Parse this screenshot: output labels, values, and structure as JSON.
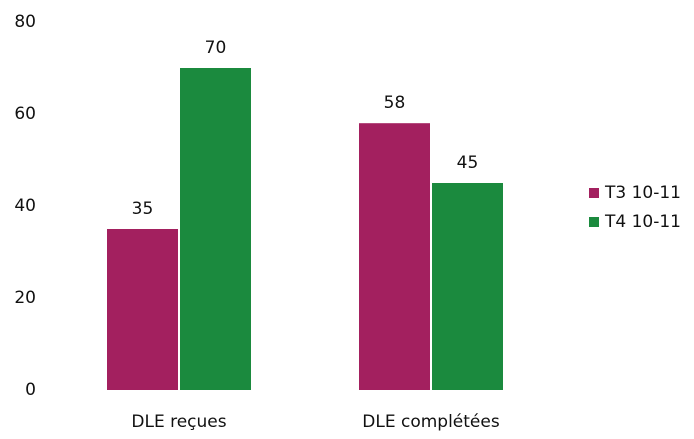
{
  "chart_data": {
    "type": "bar",
    "categories": [
      "DLE reçues",
      "DLE complétées"
    ],
    "series": [
      {
        "name": "T3 10-11",
        "color": "#a3205f",
        "values": [
          35,
          58
        ]
      },
      {
        "name": "T4 10-11",
        "color": "#1b8a3e",
        "values": [
          70,
          45
        ]
      }
    ],
    "ylim": [
      0,
      80
    ],
    "yticks": [
      0,
      20,
      40,
      60,
      80
    ],
    "grid": false,
    "legend": "right"
  }
}
